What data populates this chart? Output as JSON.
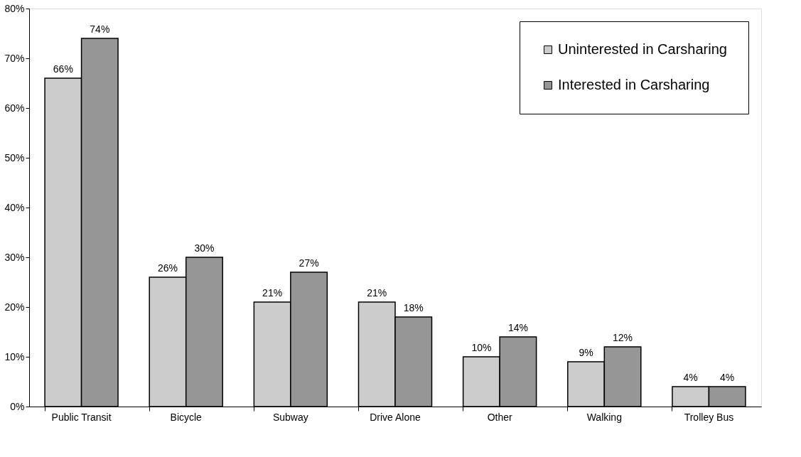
{
  "chart_data": {
    "type": "bar",
    "categories": [
      "Public Transit",
      "Bicycle",
      "Subway",
      "Drive Alone",
      "Other",
      "Walking",
      "Trolley Bus"
    ],
    "series": [
      {
        "name": "Uninterested in Carsharing",
        "color": "#cccccc",
        "values": [
          66,
          26,
          21,
          21,
          10,
          9,
          4
        ],
        "value_labels": [
          "66%",
          "26%",
          "21%",
          "21%",
          "10%",
          "9%",
          "4%"
        ]
      },
      {
        "name": "Interested in Carsharing",
        "color": "#969696",
        "values": [
          74,
          30,
          27,
          18,
          14,
          12,
          4
        ],
        "value_labels": [
          "74%",
          "30%",
          "27%",
          "18%",
          "14%",
          "12%",
          "4%"
        ]
      }
    ],
    "ylim": [
      0,
      80
    ],
    "yticks": [
      {
        "value": 0,
        "label": "0%"
      },
      {
        "value": 10,
        "label": "10%"
      },
      {
        "value": 20,
        "label": "20%"
      },
      {
        "value": 30,
        "label": "30%"
      },
      {
        "value": 40,
        "label": "40%"
      },
      {
        "value": 50,
        "label": "50%"
      },
      {
        "value": 60,
        "label": "60%"
      },
      {
        "value": 70,
        "label": "70%"
      },
      {
        "value": 80,
        "label": "80%"
      }
    ],
    "grid": false,
    "legend": "top right"
  }
}
